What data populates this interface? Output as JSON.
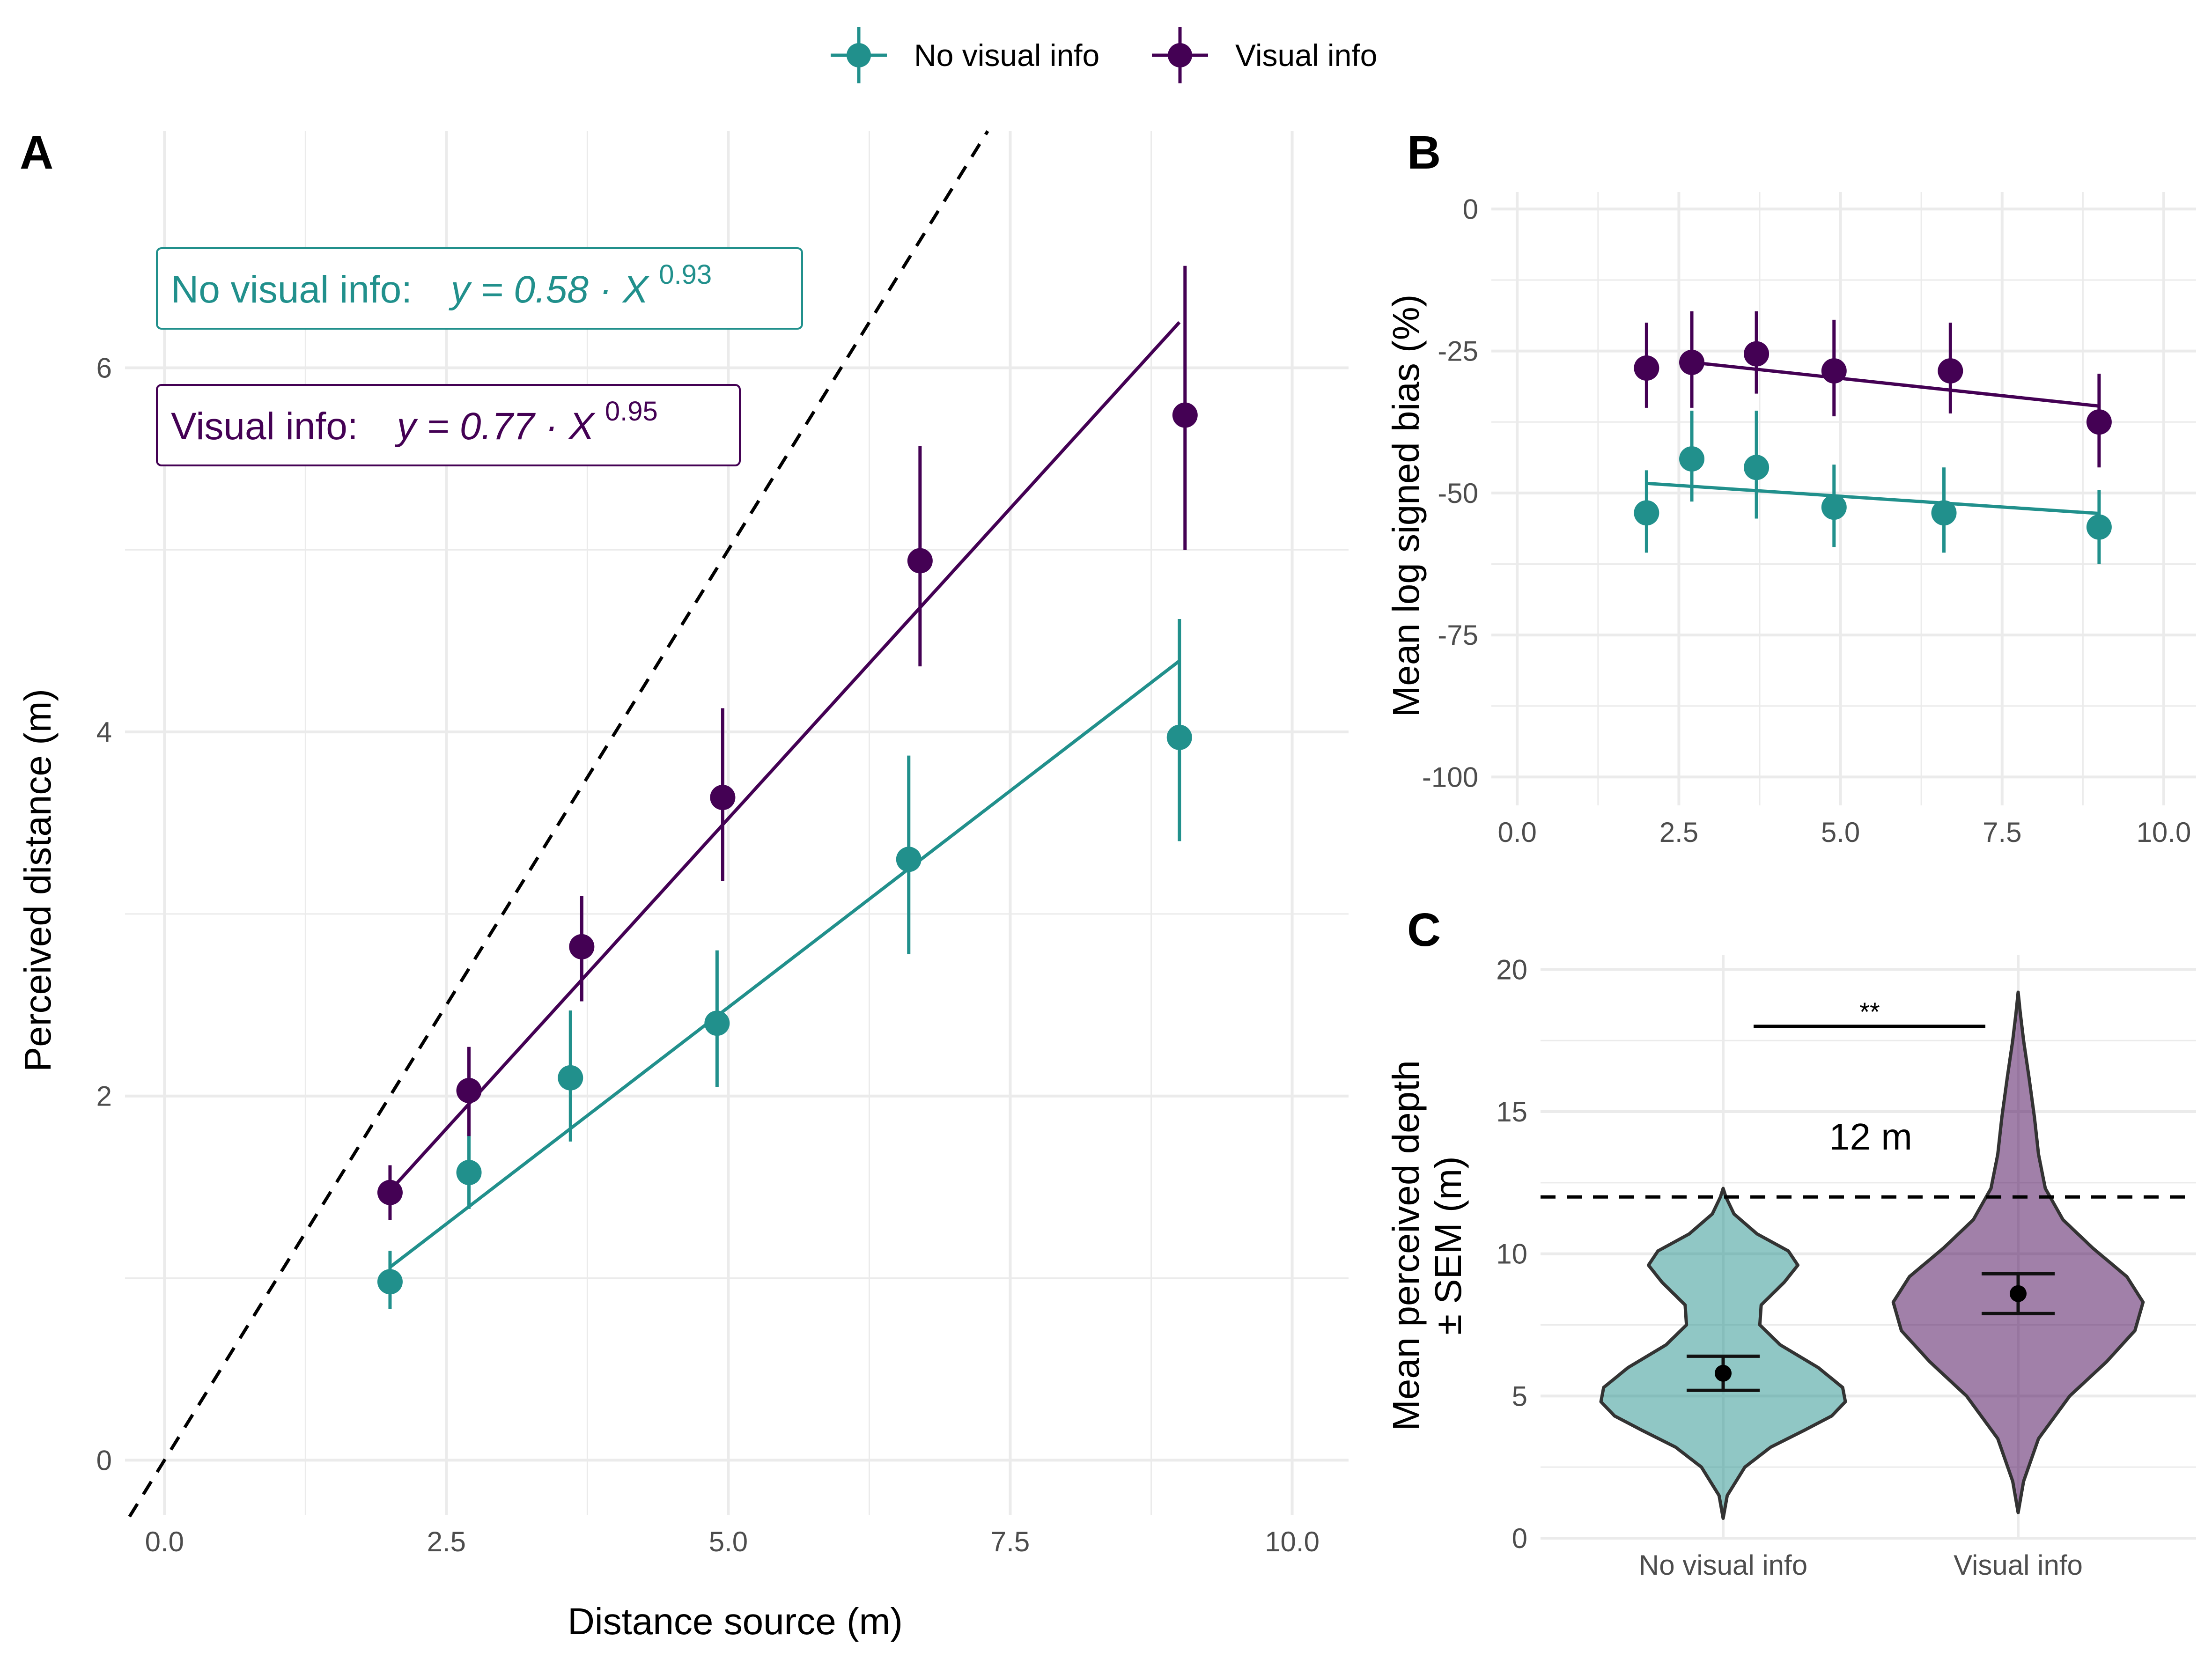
{
  "colors": {
    "no_visual": "#21908C",
    "visual": "#440154",
    "no_visual_fill": "rgba(33,144,140,0.5)",
    "visual_fill": "rgba(68,1,84,0.5)"
  },
  "legend": {
    "items": [
      {
        "label": "No visual info",
        "color": "#21908C"
      },
      {
        "label": "Visual info",
        "color": "#440154"
      }
    ]
  },
  "chart_data": [
    {
      "panel": "A",
      "type": "scatter",
      "xlabel": "Distance source (m)",
      "ylabel": "Perceived distance (m)",
      "xlim": [
        -0.35,
        10.5
      ],
      "ylim": [
        -0.3,
        7.3
      ],
      "xticks": [
        0.0,
        2.5,
        5.0,
        7.5,
        10.0
      ],
      "xtick_labels": [
        "0.0",
        "2.5",
        "5.0",
        "7.5",
        "10.0"
      ],
      "yticks": [
        0,
        2,
        4,
        6
      ],
      "ytick_labels": [
        "0",
        "2",
        "4",
        "6"
      ],
      "reference_line": "identity (y = x), dashed",
      "grid": true,
      "annotations": [
        {
          "series": "No visual info",
          "label": "No visual info:",
          "formula": "y = 0.58 · X",
          "exponent": "0.93"
        },
        {
          "series": "Visual info",
          "label": "Visual info:",
          "formula": "y = 0.77 · X",
          "exponent": "0.95"
        }
      ],
      "series": [
        {
          "name": "No visual info",
          "color": "#21908C",
          "x": [
            2.0,
            2.7,
            3.6,
            4.9,
            6.6,
            9.0
          ],
          "y": [
            0.98,
            1.58,
            2.1,
            2.4,
            3.3,
            3.97
          ],
          "err_low": [
            0.83,
            1.38,
            1.75,
            2.05,
            2.78,
            3.4
          ],
          "err_high": [
            1.15,
            1.8,
            2.47,
            2.8,
            3.87,
            4.62
          ],
          "fit": {
            "x": [
              2.0,
              9.0
            ],
            "y": [
              1.06,
              4.39
            ]
          }
        },
        {
          "name": "Visual info",
          "color": "#440154",
          "x": [
            2.0,
            2.7,
            3.7,
            4.95,
            6.7,
            9.05
          ],
          "y": [
            1.47,
            2.03,
            2.82,
            3.64,
            4.94,
            5.74
          ],
          "err_low": [
            1.32,
            1.78,
            2.52,
            3.18,
            4.36,
            5.0
          ],
          "err_high": [
            1.62,
            2.27,
            3.1,
            4.13,
            5.57,
            6.56
          ],
          "fit": {
            "x": [
              2.0,
              9.0
            ],
            "y": [
              1.48,
              6.25
            ]
          }
        }
      ]
    },
    {
      "panel": "B",
      "type": "scatter",
      "xlabel": "",
      "ylabel": "Mean log signed bias (%)",
      "xlim": [
        -0.4,
        10.5
      ],
      "ylim": [
        -105,
        3
      ],
      "xticks": [
        0.0,
        2.5,
        5.0,
        7.5,
        10.0
      ],
      "xtick_labels": [
        "0.0",
        "2.5",
        "5.0",
        "7.5",
        "10.0"
      ],
      "yticks": [
        0,
        -25,
        -50,
        -75,
        -100
      ],
      "ytick_labels": [
        "0",
        "-25",
        "-50",
        "-75",
        "-100"
      ],
      "grid": true,
      "series": [
        {
          "name": "No visual info",
          "color": "#21908C",
          "x": [
            2.0,
            2.7,
            3.7,
            4.9,
            6.6,
            9.0
          ],
          "y": [
            -53.5,
            -44.0,
            -45.5,
            -52.5,
            -53.5,
            -56.0
          ],
          "err_low": [
            -60.5,
            -51.5,
            -54.5,
            -59.5,
            -60.5,
            -62.5
          ],
          "err_high": [
            -46.0,
            -35.5,
            -35.5,
            -45.0,
            -45.5,
            -49.5
          ],
          "fit": {
            "x": [
              2.0,
              9.0
            ],
            "y": [
              -48.3,
              -53.6
            ]
          }
        },
        {
          "name": "Visual info",
          "color": "#440154",
          "x": [
            2.0,
            2.7,
            3.7,
            4.9,
            6.7,
            9.0
          ],
          "y": [
            -28.0,
            -27.0,
            -25.5,
            -28.5,
            -28.5,
            -37.5
          ],
          "err_low": [
            -35.0,
            -35.0,
            -32.5,
            -36.5,
            -36.0,
            -45.5
          ],
          "err_high": [
            -20.0,
            -18.0,
            -18.0,
            -19.5,
            -20.0,
            -29.0
          ],
          "fit": {
            "x": [
              2.7,
              9.0
            ],
            "y": [
              -27.0,
              -34.7
            ]
          }
        }
      ]
    },
    {
      "panel": "C",
      "type": "violin",
      "xlabel": "",
      "ylabel_lines": [
        "Mean perceived depth",
        "± SEM (m)"
      ],
      "categories": [
        "No visual info",
        "Visual info"
      ],
      "ylim": [
        0,
        20.5
      ],
      "yticks": [
        0,
        5,
        10,
        15,
        20
      ],
      "ytick_labels": [
        "0",
        "5",
        "10",
        "15",
        "20"
      ],
      "grid": true,
      "reference": {
        "y": 12,
        "label": "12 m"
      },
      "significance": {
        "label": "**",
        "y": 18
      },
      "series": [
        {
          "name": "No visual info",
          "fill": "rgba(33,144,140,0.5)",
          "mean": 5.8,
          "sem_low": 5.2,
          "sem_high": 6.4,
          "density": [
            [
              0.7,
              0
            ],
            [
              1.5,
              0.03
            ],
            [
              2.5,
              0.16
            ],
            [
              3.2,
              0.35
            ],
            [
              3.8,
              0.6
            ],
            [
              4.3,
              0.8
            ],
            [
              4.8,
              0.9
            ],
            [
              5.3,
              0.88
            ],
            [
              6.0,
              0.7
            ],
            [
              6.8,
              0.42
            ],
            [
              7.5,
              0.27
            ],
            [
              8.2,
              0.28
            ],
            [
              9.0,
              0.45
            ],
            [
              9.6,
              0.55
            ],
            [
              10.1,
              0.48
            ],
            [
              10.7,
              0.25
            ],
            [
              11.4,
              0.08
            ],
            [
              12.0,
              0.02
            ],
            [
              12.3,
              0
            ]
          ]
        },
        {
          "name": "Visual info",
          "fill": "rgba(68,1,84,0.5)",
          "mean": 8.6,
          "sem_low": 7.9,
          "sem_high": 9.3,
          "density": [
            [
              0.9,
              0
            ],
            [
              2.0,
              0.04
            ],
            [
              3.5,
              0.15
            ],
            [
              5.0,
              0.38
            ],
            [
              6.2,
              0.65
            ],
            [
              7.3,
              0.86
            ],
            [
              8.3,
              0.92
            ],
            [
              9.2,
              0.8
            ],
            [
              10.2,
              0.55
            ],
            [
              11.2,
              0.33
            ],
            [
              12.3,
              0.2
            ],
            [
              13.5,
              0.15
            ],
            [
              14.8,
              0.12
            ],
            [
              16.2,
              0.08
            ],
            [
              17.5,
              0.04
            ],
            [
              18.5,
              0.015
            ],
            [
              19.2,
              0
            ]
          ]
        }
      ]
    }
  ]
}
